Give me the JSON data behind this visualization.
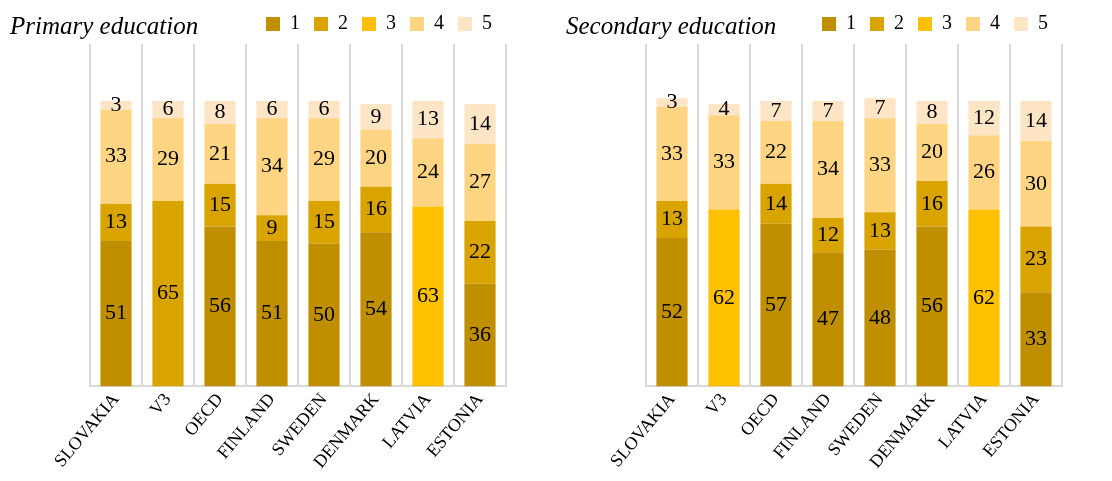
{
  "chart_data": [
    {
      "type": "bar",
      "title": "Primary education",
      "stacked": true,
      "data_labels": true,
      "grid": "x",
      "legend": "top right",
      "categories": [
        "SLOVAKIA",
        "V3",
        "OECD",
        "FINLAND",
        "SWEDEN",
        "DENMARK",
        "LATVIA",
        "ESTONIA"
      ],
      "series": [
        {
          "name": "1",
          "color": "#bf8f00",
          "values": [
            51,
            null,
            56,
            51,
            50,
            54,
            null,
            36
          ]
        },
        {
          "name": "2",
          "color": "#d9a300",
          "values": [
            13,
            65,
            15,
            9,
            15,
            16,
            null,
            22
          ]
        },
        {
          "name": "3",
          "color": "#ffc000",
          "values": [
            null,
            null,
            null,
            null,
            null,
            null,
            63,
            null
          ]
        },
        {
          "name": "4",
          "color": "#ffd584",
          "values": [
            33,
            29,
            21,
            34,
            29,
            20,
            24,
            27
          ]
        },
        {
          "name": "5",
          "color": "#fde5c6",
          "values": [
            3,
            6,
            8,
            6,
            6,
            9,
            13,
            14
          ]
        }
      ]
    },
    {
      "type": "bar",
      "title": "Secondary education",
      "stacked": true,
      "data_labels": true,
      "grid": "x",
      "legend": "top right",
      "categories": [
        "SLOVAKIA",
        "V3",
        "OECD",
        "FINLAND",
        "SWEDEN",
        "DENMARK",
        "LATVIA",
        "ESTONIA"
      ],
      "series": [
        {
          "name": "1",
          "color": "#bf8f00",
          "values": [
            52,
            null,
            57,
            47,
            48,
            56,
            null,
            33
          ]
        },
        {
          "name": "2",
          "color": "#d9a300",
          "values": [
            13,
            null,
            14,
            12,
            13,
            16,
            null,
            23
          ]
        },
        {
          "name": "3",
          "color": "#ffc000",
          "values": [
            null,
            62,
            null,
            null,
            null,
            null,
            62,
            null
          ]
        },
        {
          "name": "4",
          "color": "#ffd584",
          "values": [
            33,
            33,
            22,
            34,
            33,
            20,
            26,
            30
          ]
        },
        {
          "name": "5",
          "color": "#fde5c6",
          "values": [
            3,
            4,
            7,
            7,
            7,
            8,
            12,
            14
          ]
        }
      ]
    }
  ]
}
